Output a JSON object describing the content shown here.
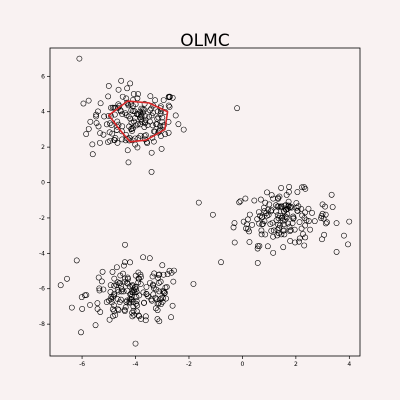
{
  "chart_data": {
    "type": "scatter",
    "title": "OLMC",
    "xlabel": "",
    "ylabel": "",
    "xlim": [
      -7.2,
      4.4
    ],
    "ylim": [
      -9.8,
      7.6
    ],
    "xticks": [
      -6,
      -4,
      -2,
      0,
      2,
      4
    ],
    "yticks": [
      6,
      4,
      2,
      0,
      -2,
      -4,
      -6,
      -8
    ],
    "grid": false,
    "background": "#f9f2f2",
    "marker": {
      "shape": "open-circle",
      "color": "#000000"
    },
    "clusters": [
      {
        "center": [
          -4.0,
          3.5
        ],
        "spread": [
          0.85,
          0.9
        ],
        "count": 170
      },
      {
        "center": [
          1.5,
          -2.0
        ],
        "spread": [
          0.9,
          0.75
        ],
        "count": 160
      },
      {
        "center": [
          -4.0,
          -6.3
        ],
        "spread": [
          0.9,
          0.85
        ],
        "count": 170
      }
    ],
    "outliers": [
      [
        -6.1,
        7.0
      ],
      [
        -4.2,
        5.6
      ],
      [
        -0.2,
        4.2
      ],
      [
        -5.6,
        1.6
      ],
      [
        -3.4,
        0.6
      ],
      [
        -6.8,
        -5.8
      ],
      [
        -6.2,
        -4.4
      ],
      [
        -0.8,
        -4.5
      ],
      [
        3.8,
        -3.0
      ],
      [
        -4.0,
        -9.1
      ]
    ],
    "polygon": {
      "color": "#d62728",
      "points": [
        [
          -5.0,
          3.8
        ],
        [
          -4.3,
          4.6
        ],
        [
          -3.5,
          4.5
        ],
        [
          -2.8,
          4.0
        ],
        [
          -2.9,
          3.0
        ],
        [
          -3.6,
          2.4
        ],
        [
          -4.2,
          2.3
        ],
        [
          -4.6,
          3.0
        ]
      ]
    }
  }
}
